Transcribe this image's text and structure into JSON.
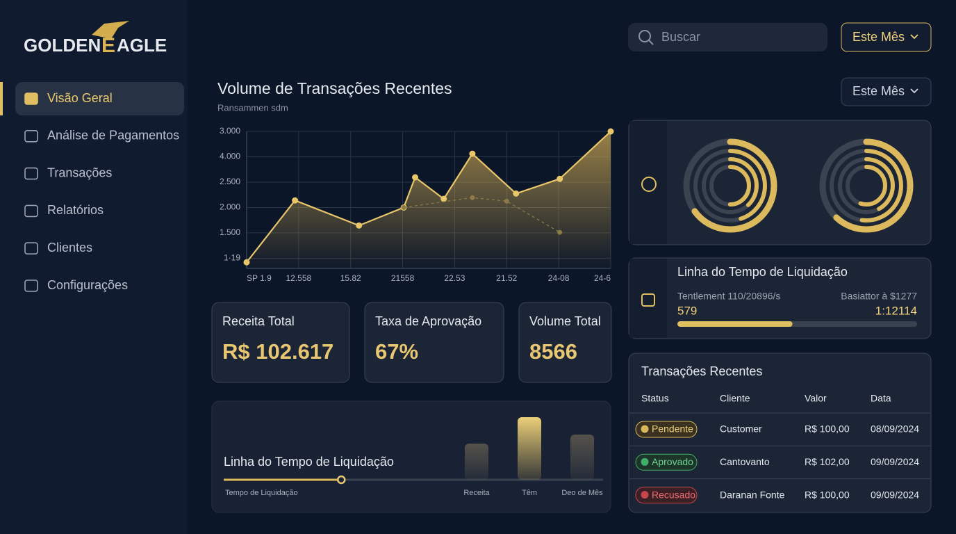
{
  "brand": [
    "GOLDEN",
    "E",
    "AGLE"
  ],
  "nav": {
    "items": [
      "Visão Geral",
      "Análise de Pagamentos",
      "Transações",
      "Relatórios",
      "Clientes",
      "Configurações"
    ],
    "active": 0
  },
  "search_placeholder": "Buscar",
  "period": "Este Mês",
  "chart_period": "Este Mês",
  "volume_chart": {
    "type": "line",
    "title": "Volume de Transações Recentes",
    "subtitle": "Ransammen sdm",
    "xlim": [
      0,
      7
    ],
    "xticks": [
      {
        "value": 0,
        "label": "SP 1.9"
      },
      {
        "value": 1,
        "label": "12.558"
      },
      {
        "value": 2,
        "label": "15.82"
      },
      {
        "value": 3,
        "label": "21558"
      },
      {
        "value": 4,
        "label": "22.53"
      },
      {
        "value": 5,
        "label": "21.52"
      },
      {
        "value": 6,
        "label": "24-08"
      },
      {
        "value": 7,
        "label": "24-6"
      }
    ],
    "ylim": [
      -0.4,
      5
    ],
    "yticks": [
      {
        "value": 0,
        "label": "1·19"
      },
      {
        "value": 1,
        "label": "1.500"
      },
      {
        "value": 2,
        "label": "2.000"
      },
      {
        "value": 3,
        "label": "2.500"
      },
      {
        "value": 4,
        "label": "4.000"
      },
      {
        "value": 5,
        "label": "3.000"
      }
    ],
    "grid": true,
    "series": [
      {
        "color": "#e9c66a",
        "area": true,
        "x": [
          0,
          0.93,
          2.16,
          3.02,
          3.24,
          3.79,
          4.34,
          5.18,
          6.02,
          7
        ],
        "values": [
          -0.16,
          2.28,
          1.29,
          2.0,
          3.19,
          2.34,
          4.12,
          2.55,
          3.13,
          5.0
        ]
      },
      {
        "color": "#8c7a48",
        "dash": true,
        "x": [
          3.02,
          4.34,
          5.0,
          6.02
        ],
        "values": [
          2.0,
          2.39,
          2.25,
          1.02
        ]
      }
    ]
  },
  "stats": [
    {
      "label": "Receita Total",
      "value": "R$ 102.617"
    },
    {
      "label": "Taxa de Aprovação",
      "value": "67%"
    },
    {
      "label": "Volume Total",
      "value": "8566"
    }
  ],
  "settlement_bars": {
    "type": "bar",
    "title": "Linha do Tempo de Liquidação",
    "slider_label": "Tempo de Liquidação",
    "progress": 31,
    "categories": [
      "Receita",
      "Têm",
      "Deo de Mês"
    ],
    "values": [
      52,
      90,
      65
    ],
    "ylim": [
      0,
      100
    ],
    "colors": [
      "#4d4a44",
      "#e3c365",
      "#4d4a44"
    ]
  },
  "radials": {
    "type": "radial",
    "ylim": [
      0,
      100
    ],
    "series": [
      [
        65,
        45,
        38,
        50
      ],
      [
        62,
        52,
        42,
        55
      ]
    ],
    "color": "#dcb95c"
  },
  "settlement": {
    "title": "Linha do Tempo de Liquidação",
    "left_label": "Tentlement 110/20896/s",
    "left_value": "579",
    "right_label": "Basiattor à $1277",
    "right_value": "1:12114",
    "progress": 48
  },
  "transactions": {
    "title": "Transações Recentes",
    "columns": [
      "Status",
      "Cliente",
      "Valor",
      "Data"
    ],
    "rows": [
      [
        "Pendente",
        "Customer",
        "R$ 100,00",
        "08/09/2024"
      ],
      [
        "Aprovado",
        "Cantovanto",
        "R$ 102,00",
        "09/09/2024"
      ],
      [
        "Recusado",
        "Daranan Fonte",
        "R$ 100,00",
        "09/09/2024"
      ]
    ]
  }
}
